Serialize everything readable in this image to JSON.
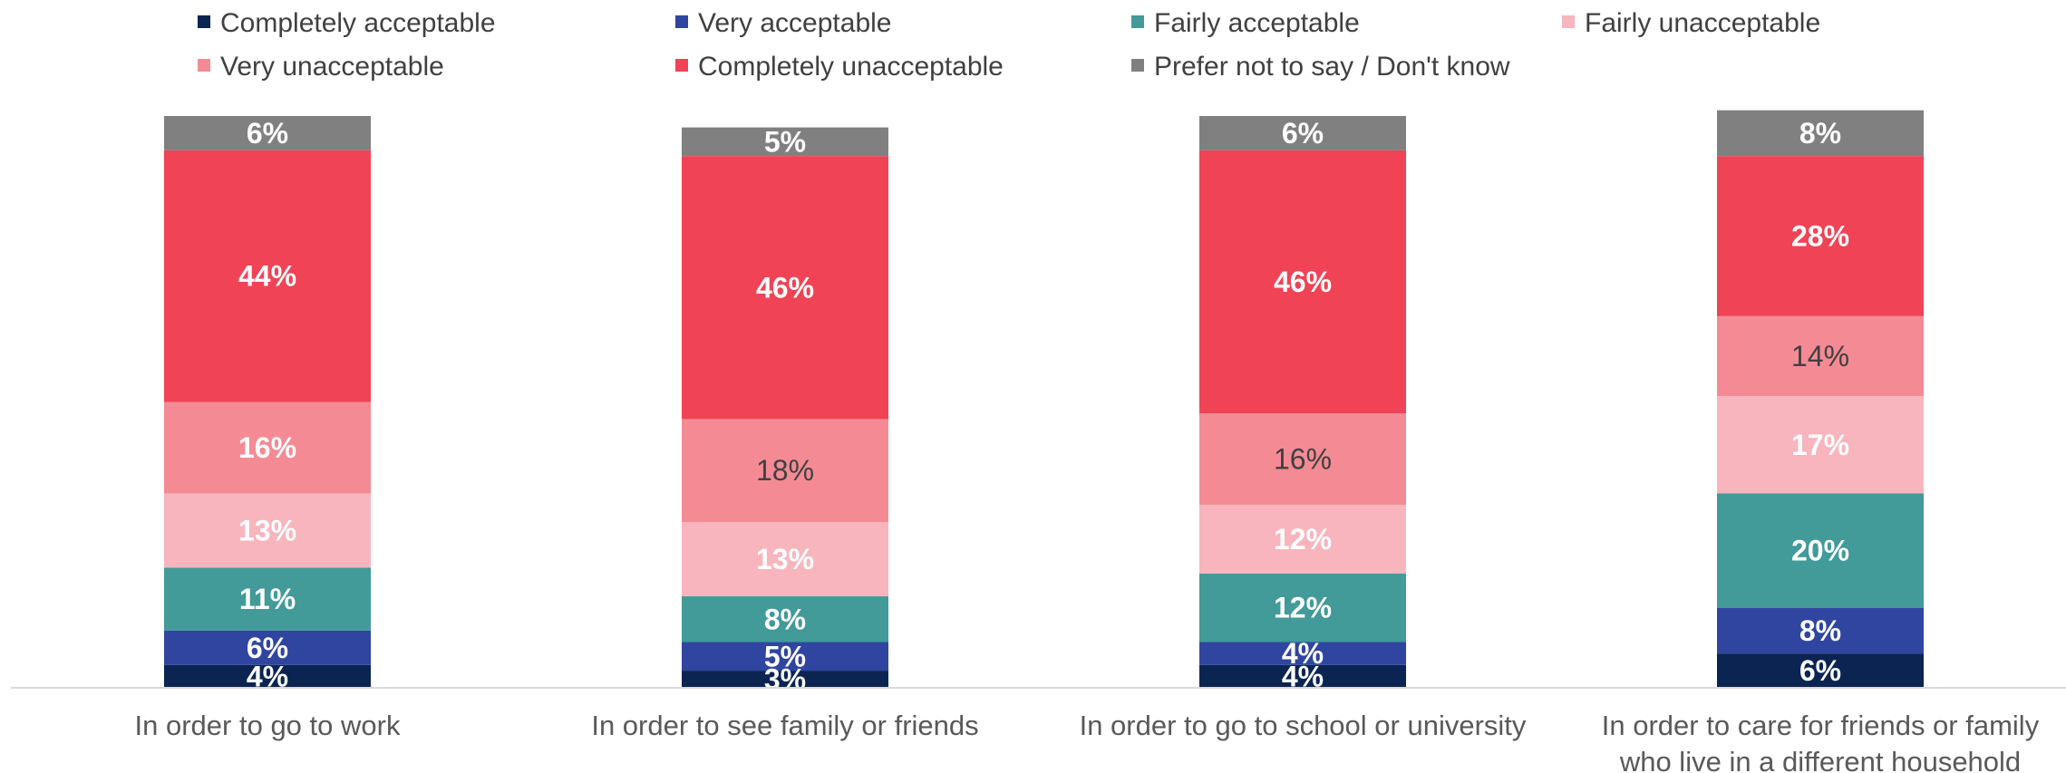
{
  "colors": {
    "Completely acceptable": "#0b2452",
    "Very acceptable": "#2f45a0",
    "Fairly acceptable": "#429a99",
    "Fairly unacceptable": "#f8b5bd",
    "Very unacceptable": "#f48b94",
    "Completely unacceptable": "#f04356",
    "Prefer not to say / Don't know": "#808080"
  },
  "chart_data": {
    "type": "bar",
    "stacked": true,
    "percent_stacked": true,
    "legend_position": "top",
    "grid": false,
    "ylim": [
      0,
      100
    ],
    "categories": [
      [
        "In order to go to work"
      ],
      [
        "In order to see family or friends"
      ],
      [
        "In order to go to school or university"
      ],
      [
        "In order to care for friends or family",
        "who live in a different household"
      ]
    ],
    "series": [
      {
        "name": "Completely acceptable",
        "values": [
          4,
          3,
          4,
          6
        ],
        "labels": [
          "4%",
          "3%",
          "4%",
          "6%"
        ],
        "label_color": "#ffffff",
        "label_bold": true
      },
      {
        "name": "Very acceptable",
        "values": [
          6,
          5,
          4,
          8
        ],
        "labels": [
          "6%",
          "5%",
          "4%",
          "8%"
        ],
        "label_color": "#ffffff",
        "label_bold": true
      },
      {
        "name": "Fairly acceptable",
        "values": [
          11,
          8,
          12,
          20
        ],
        "labels": [
          "11%",
          "8%",
          "12%",
          "20%"
        ],
        "label_color": "#ffffff",
        "label_bold": true
      },
      {
        "name": "Fairly unacceptable",
        "values": [
          13,
          13,
          12,
          17
        ],
        "labels": [
          "13%",
          "13%",
          "12%",
          "17%"
        ],
        "label_color": "#ffffff",
        "label_bold": true
      },
      {
        "name": "Very unacceptable",
        "values": [
          16,
          18,
          16,
          14
        ],
        "labels": [
          "16%",
          "18%",
          "16%",
          "14%"
        ],
        "label_color_list": [
          "#ffffff",
          "#404040",
          "#404040",
          "#404040"
        ],
        "label_bold_list": [
          true,
          false,
          false,
          false
        ]
      },
      {
        "name": "Completely unacceptable",
        "values": [
          44,
          46,
          46,
          28
        ],
        "labels": [
          "44%",
          "46%",
          "46%",
          "28%"
        ],
        "label_color": "#ffffff",
        "label_bold": true
      },
      {
        "name": "Prefer not to say / Don't know",
        "values": [
          6,
          5,
          6,
          8
        ],
        "labels": [
          "6%",
          "5%",
          "6%",
          "8%"
        ],
        "label_color": "#ffffff",
        "label_bold": true
      }
    ]
  }
}
